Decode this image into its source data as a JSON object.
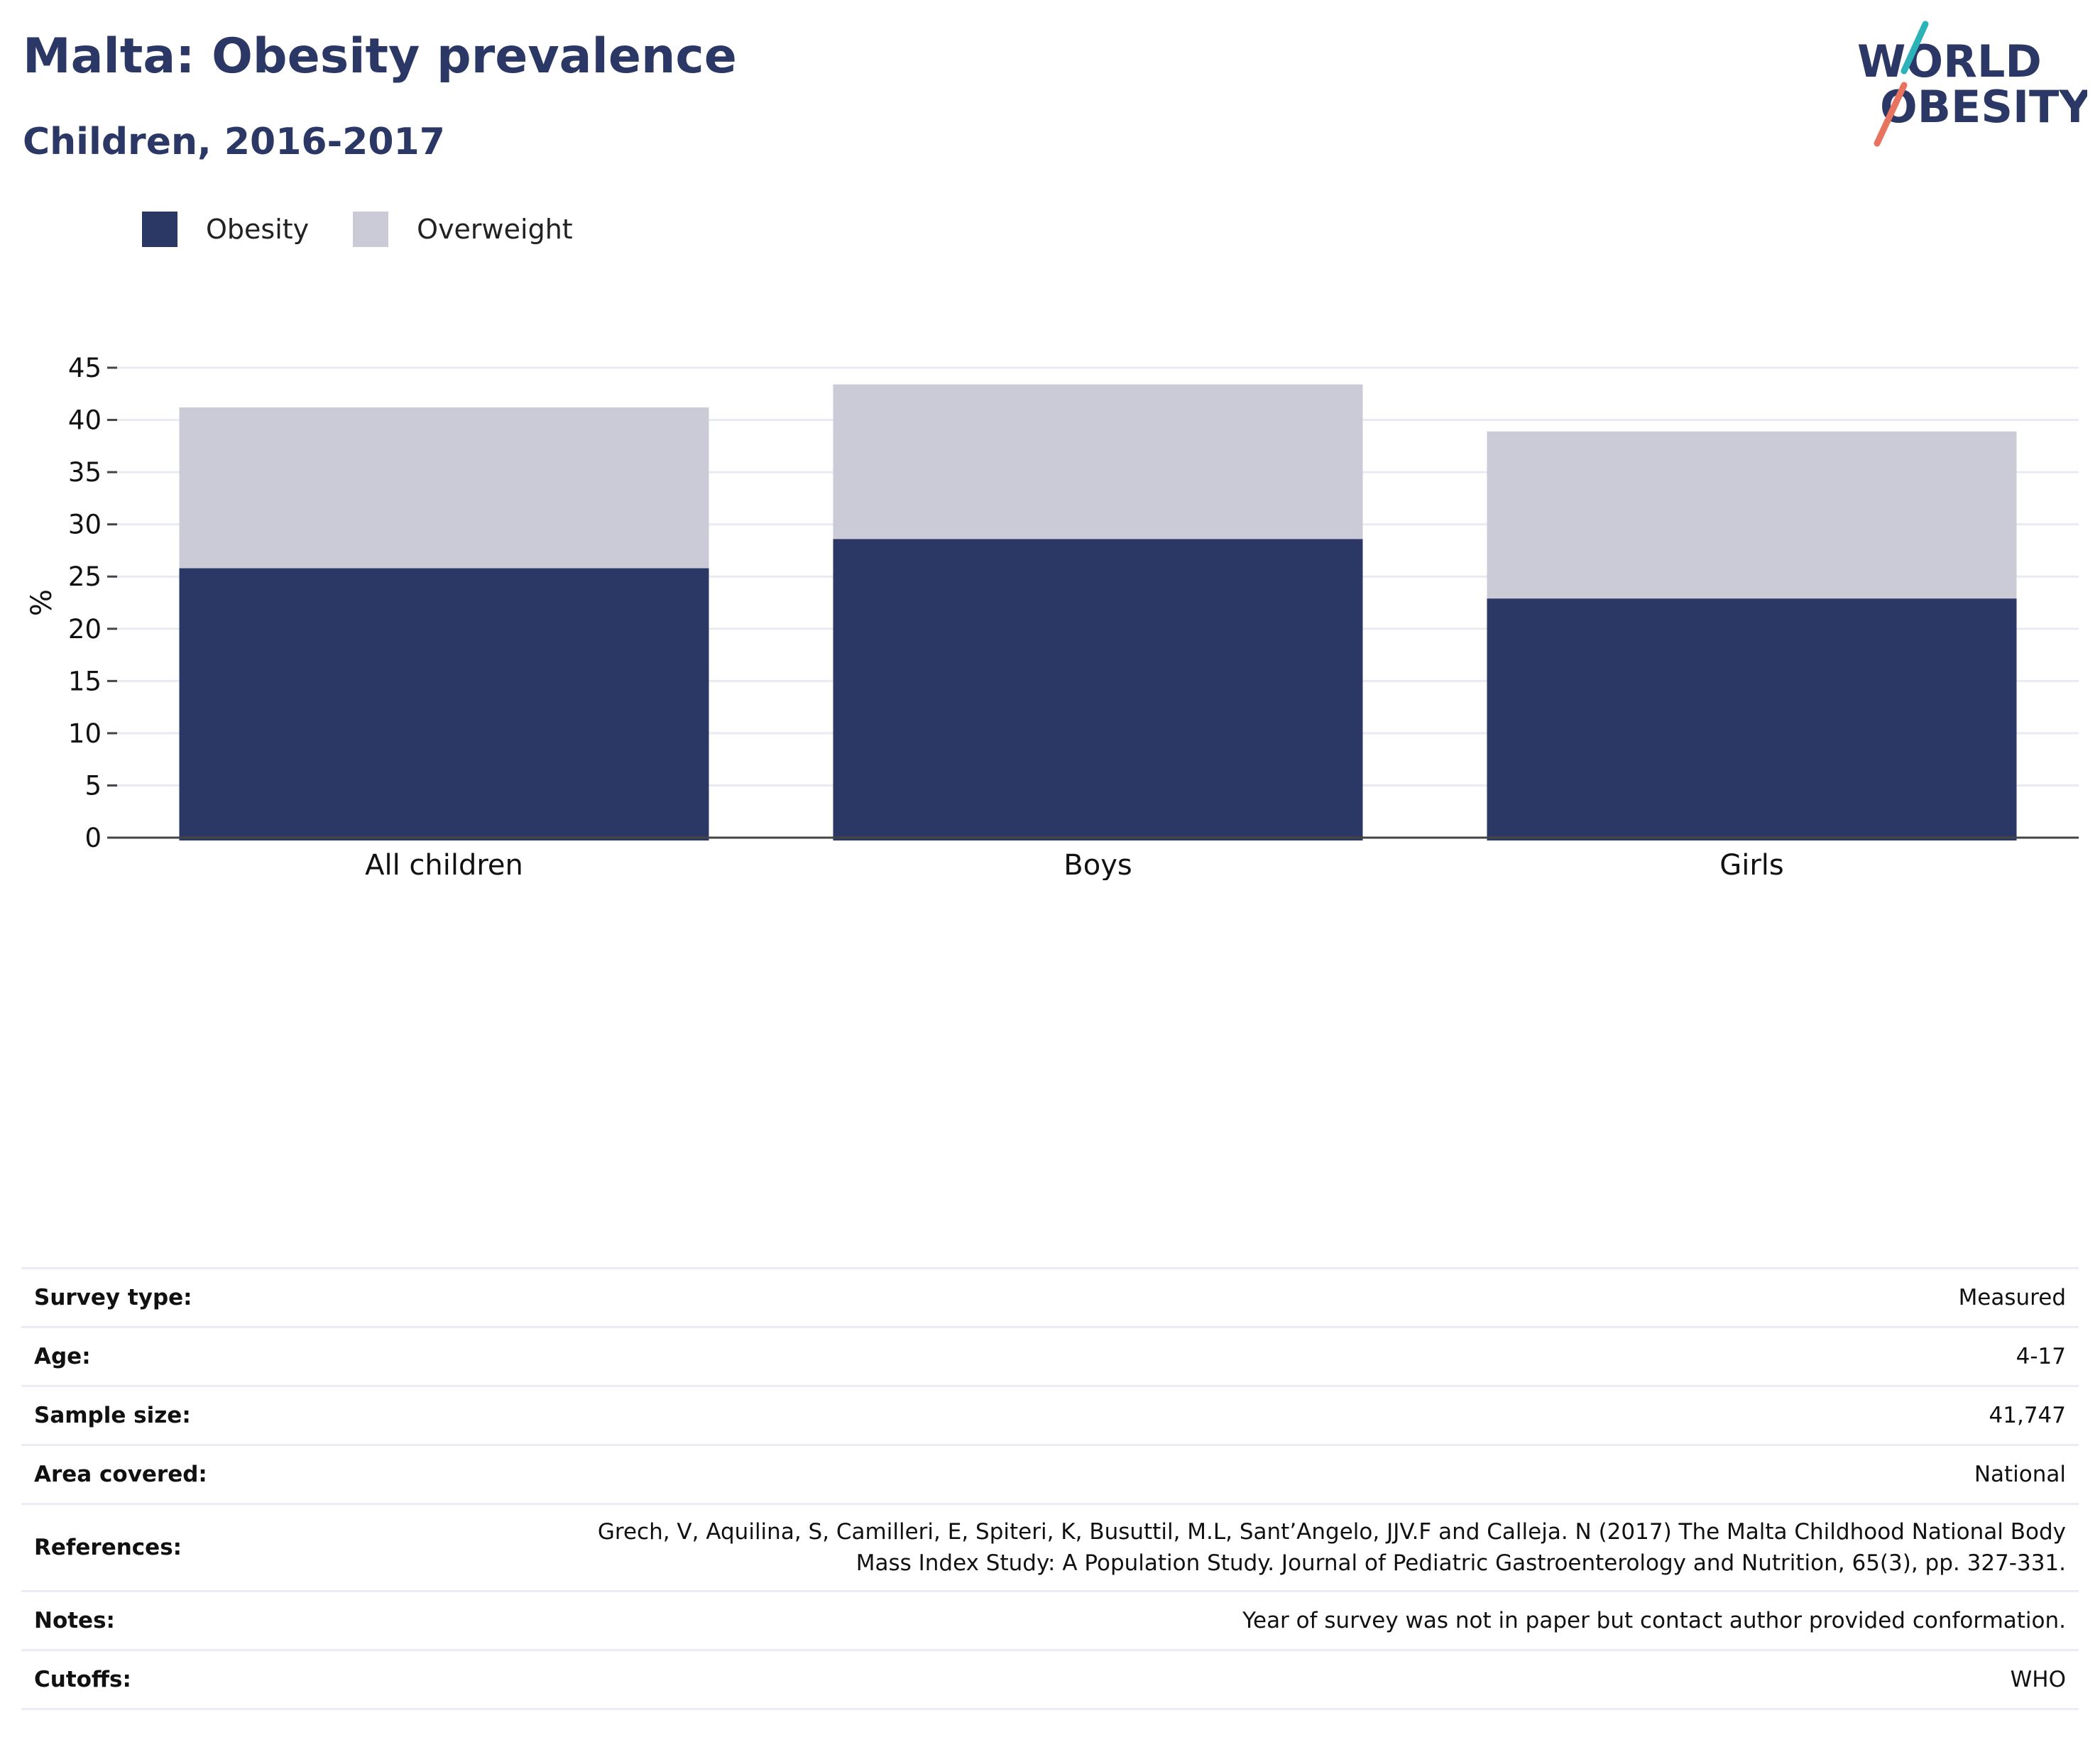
{
  "header": {
    "title": "Malta: Obesity prevalence",
    "subtitle": "Children, 2016-2017"
  },
  "logo": {
    "line1": "WORLD",
    "line2": "OBESITY",
    "colors": {
      "text": "#2b3764",
      "slash_top": "#2bb3b8",
      "slash_bottom": "#e8735f"
    }
  },
  "legend": [
    {
      "label": "Obesity",
      "color": "#2b3764"
    },
    {
      "label": "Overweight",
      "color": "#cacbd6"
    }
  ],
  "chart_data": {
    "type": "bar",
    "stacked": true,
    "categories": [
      "All children",
      "Boys",
      "Girls"
    ],
    "series": [
      {
        "name": "Obesity",
        "values": [
          25.8,
          28.6,
          22.9
        ],
        "color": "#2b3764"
      },
      {
        "name": "Overweight",
        "values": [
          15.4,
          14.8,
          16.0
        ],
        "color": "#cacbd6"
      }
    ],
    "ylabel": "%",
    "xlabel": "",
    "ylim": [
      0,
      45
    ],
    "yticks": [
      0,
      5,
      10,
      15,
      20,
      25,
      30,
      35,
      40,
      45
    ],
    "grid": true,
    "legend_position": "top-left"
  },
  "info": {
    "survey_type": {
      "label": "Survey type:",
      "value": "Measured"
    },
    "age": {
      "label": "Age:",
      "value": "4-17"
    },
    "sample_size": {
      "label": "Sample size:",
      "value": "41,747"
    },
    "area_covered": {
      "label": "Area covered:",
      "value": "National"
    },
    "references": {
      "label": "References:",
      "value_line1": "Grech, V, Aquilina, S, Camilleri, E, Spiteri, K, Busuttil, M.L, Sant’Angelo, JJV.F and Calleja. N (2017) The Malta Childhood National Body",
      "value_line2": "Mass Index Study: A Population Study. Journal of Pediatric Gastroenterology and Nutrition, 65(3), pp. 327-331."
    },
    "notes": {
      "label": "Notes:",
      "value": "Year of survey was not in paper but contact author provided conformation."
    },
    "cutoffs": {
      "label": "Cutoffs:",
      "value": "WHO"
    }
  }
}
